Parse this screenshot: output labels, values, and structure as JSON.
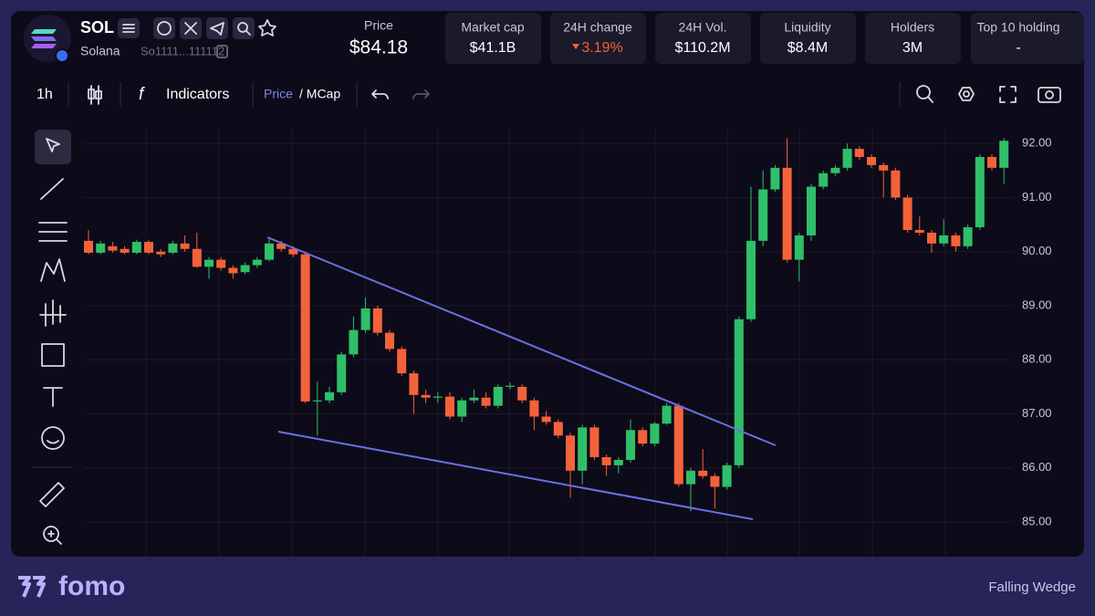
{
  "header": {
    "symbol": "SOL",
    "name": "Solana",
    "address": "So1111...111112",
    "price_label": "Price",
    "price": "$84.18",
    "stats": [
      {
        "label": "Market cap",
        "value": "$41.1B"
      },
      {
        "label": "24H change",
        "value": "3.19%"
      },
      {
        "label": "24H Vol.",
        "value": "$110.2M"
      },
      {
        "label": "Liquidity",
        "value": "$8.4M"
      },
      {
        "label": "Holders",
        "value": "3M"
      },
      {
        "label": "Top 10 holding",
        "value": "-"
      }
    ]
  },
  "toolbar": {
    "timeframe": "1h",
    "indicators": "Indicators",
    "price_toggle": "Price",
    "mcap_toggle": "/ MCap"
  },
  "chart_data": {
    "type": "candlestick",
    "up_color": "#2fbf68",
    "down_color": "#f4623a",
    "ylim": [
      84.36,
      92.29
    ],
    "yticks": [
      {
        "value": 85,
        "label": "85.00"
      },
      {
        "value": 86,
        "label": "86.00"
      },
      {
        "value": 87,
        "label": "87.00"
      },
      {
        "value": 88,
        "label": "88.00"
      },
      {
        "value": 89,
        "label": "89.00"
      },
      {
        "value": 90,
        "label": "90.00"
      },
      {
        "value": 91,
        "label": "91.00"
      },
      {
        "value": 92,
        "label": "92.00"
      }
    ],
    "grid": true,
    "candles": [
      [
        90.2,
        90.4,
        89.95,
        89.98
      ],
      [
        89.98,
        90.2,
        89.95,
        90.15
      ],
      [
        90.1,
        90.18,
        89.98,
        90.02
      ],
      [
        90.05,
        90.1,
        89.95,
        89.98
      ],
      [
        89.98,
        90.22,
        89.95,
        90.18
      ],
      [
        90.18,
        90.22,
        89.95,
        89.98
      ],
      [
        90.0,
        90.05,
        89.9,
        89.95
      ],
      [
        89.98,
        90.2,
        89.95,
        90.15
      ],
      [
        90.15,
        90.3,
        90.0,
        90.05
      ],
      [
        90.05,
        90.35,
        89.7,
        89.72
      ],
      [
        89.72,
        89.9,
        89.5,
        89.85
      ],
      [
        89.85,
        89.9,
        89.65,
        89.7
      ],
      [
        89.7,
        89.75,
        89.5,
        89.6
      ],
      [
        89.62,
        89.8,
        89.58,
        89.75
      ],
      [
        89.75,
        89.9,
        89.7,
        89.85
      ],
      [
        89.85,
        90.25,
        89.82,
        90.15
      ],
      [
        90.15,
        90.2,
        90.0,
        90.05
      ],
      [
        90.05,
        90.1,
        89.9,
        89.95
      ],
      [
        89.95,
        90.0,
        87.2,
        87.23
      ],
      [
        87.23,
        87.6,
        86.6,
        87.25
      ],
      [
        87.25,
        87.5,
        87.2,
        87.4
      ],
      [
        87.4,
        88.15,
        87.35,
        88.1
      ],
      [
        88.1,
        88.8,
        88.05,
        88.55
      ],
      [
        88.55,
        89.15,
        88.5,
        88.95
      ],
      [
        88.95,
        89.0,
        88.45,
        88.5
      ],
      [
        88.5,
        88.55,
        88.15,
        88.2
      ],
      [
        88.2,
        88.25,
        87.7,
        87.75
      ],
      [
        87.75,
        87.8,
        87.0,
        87.35
      ],
      [
        87.35,
        87.45,
        87.2,
        87.3
      ],
      [
        87.3,
        87.4,
        87.2,
        87.32
      ],
      [
        87.32,
        87.4,
        86.9,
        86.95
      ],
      [
        86.95,
        87.3,
        86.85,
        87.25
      ],
      [
        87.25,
        87.45,
        87.2,
        87.3
      ],
      [
        87.3,
        87.4,
        87.1,
        87.15
      ],
      [
        87.15,
        87.55,
        87.1,
        87.5
      ],
      [
        87.5,
        87.58,
        87.45,
        87.52
      ],
      [
        87.5,
        87.55,
        87.2,
        87.25
      ],
      [
        87.25,
        87.3,
        86.7,
        86.95
      ],
      [
        86.95,
        87.05,
        86.8,
        86.85
      ],
      [
        86.85,
        86.9,
        86.55,
        86.6
      ],
      [
        86.6,
        86.65,
        85.45,
        85.95
      ],
      [
        85.95,
        86.8,
        85.7,
        86.75
      ],
      [
        86.75,
        86.8,
        86.15,
        86.2
      ],
      [
        86.2,
        86.25,
        85.85,
        86.05
      ],
      [
        86.05,
        86.2,
        85.9,
        86.15
      ],
      [
        86.15,
        86.9,
        86.1,
        86.7
      ],
      [
        86.7,
        86.75,
        86.4,
        86.45
      ],
      [
        86.45,
        86.85,
        86.4,
        86.82
      ],
      [
        86.82,
        87.2,
        86.8,
        87.15
      ],
      [
        87.15,
        87.2,
        85.65,
        85.7
      ],
      [
        85.7,
        86.0,
        85.2,
        85.95
      ],
      [
        85.95,
        86.35,
        85.8,
        85.85
      ],
      [
        85.85,
        85.9,
        85.25,
        85.65
      ],
      [
        85.65,
        86.1,
        85.6,
        86.05
      ],
      [
        86.05,
        88.8,
        86.0,
        88.75
      ],
      [
        88.75,
        91.2,
        88.7,
        90.2
      ],
      [
        90.2,
        91.5,
        90.1,
        91.15
      ],
      [
        91.15,
        91.6,
        91.1,
        91.55
      ],
      [
        91.55,
        92.1,
        89.8,
        89.85
      ],
      [
        89.85,
        90.35,
        89.45,
        90.3
      ],
      [
        90.3,
        91.25,
        90.2,
        91.2
      ],
      [
        91.2,
        91.5,
        91.15,
        91.45
      ],
      [
        91.45,
        91.6,
        91.4,
        91.55
      ],
      [
        91.55,
        92.0,
        91.5,
        91.9
      ],
      [
        91.9,
        91.95,
        91.7,
        91.75
      ],
      [
        91.75,
        91.8,
        91.55,
        91.6
      ],
      [
        91.6,
        91.65,
        91.0,
        91.5
      ],
      [
        91.5,
        91.55,
        90.95,
        91.0
      ],
      [
        91.0,
        91.05,
        90.35,
        90.4
      ],
      [
        90.4,
        90.65,
        90.3,
        90.35
      ],
      [
        90.35,
        90.4,
        89.98,
        90.15
      ],
      [
        90.15,
        90.6,
        90.1,
        90.3
      ],
      [
        90.3,
        90.35,
        90.0,
        90.1
      ],
      [
        90.1,
        90.5,
        90.05,
        90.45
      ],
      [
        90.45,
        91.8,
        90.4,
        91.75
      ],
      [
        91.75,
        91.8,
        91.5,
        91.55
      ],
      [
        91.55,
        92.1,
        91.25,
        92.05
      ]
    ]
  },
  "footer": {
    "brand": "fomo",
    "pattern": "Falling Wedge"
  }
}
